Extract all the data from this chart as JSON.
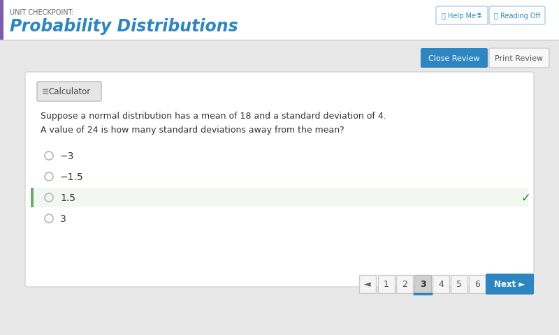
{
  "title_label": "UNIT CHECKPOINT:",
  "title_main": "Probability Distributions",
  "title_color": "#2e86c1",
  "title_label_color": "#666666",
  "bg_color": "#e8e8e8",
  "content_bg": "#ffffff",
  "header_bg": "#ffffff",
  "question_text1": "Suppose a normal distribution has a mean of 18 and a standard deviation of 4.",
  "question_text2": "A value of 24 is how many standard deviations away from the mean?",
  "options": [
    "−3",
    "−1.5",
    "1.5",
    "3"
  ],
  "correct_index": 2,
  "correct_color": "#2e7d32",
  "selected_bg": "#f2f7f2",
  "selected_border": "#6aaa6a",
  "btn_close_bg": "#2e86c1",
  "btn_close_text": "Close Review",
  "btn_print_text": "Print Review",
  "btn_print_bg": "#f8f8f8",
  "btn_print_border": "#cccccc",
  "calculator_label": "  Calculator",
  "nav_pages": [
    "1",
    "2",
    "3",
    "4",
    "5",
    "6"
  ],
  "nav_current": 2,
  "nav_next": "Next ►",
  "nav_prev": "◄",
  "left_accent_color": "#7b5ea7",
  "radio_color": "#bbbbbb",
  "separator_color": "#cccccc",
  "header_border_color": "#cccccc"
}
